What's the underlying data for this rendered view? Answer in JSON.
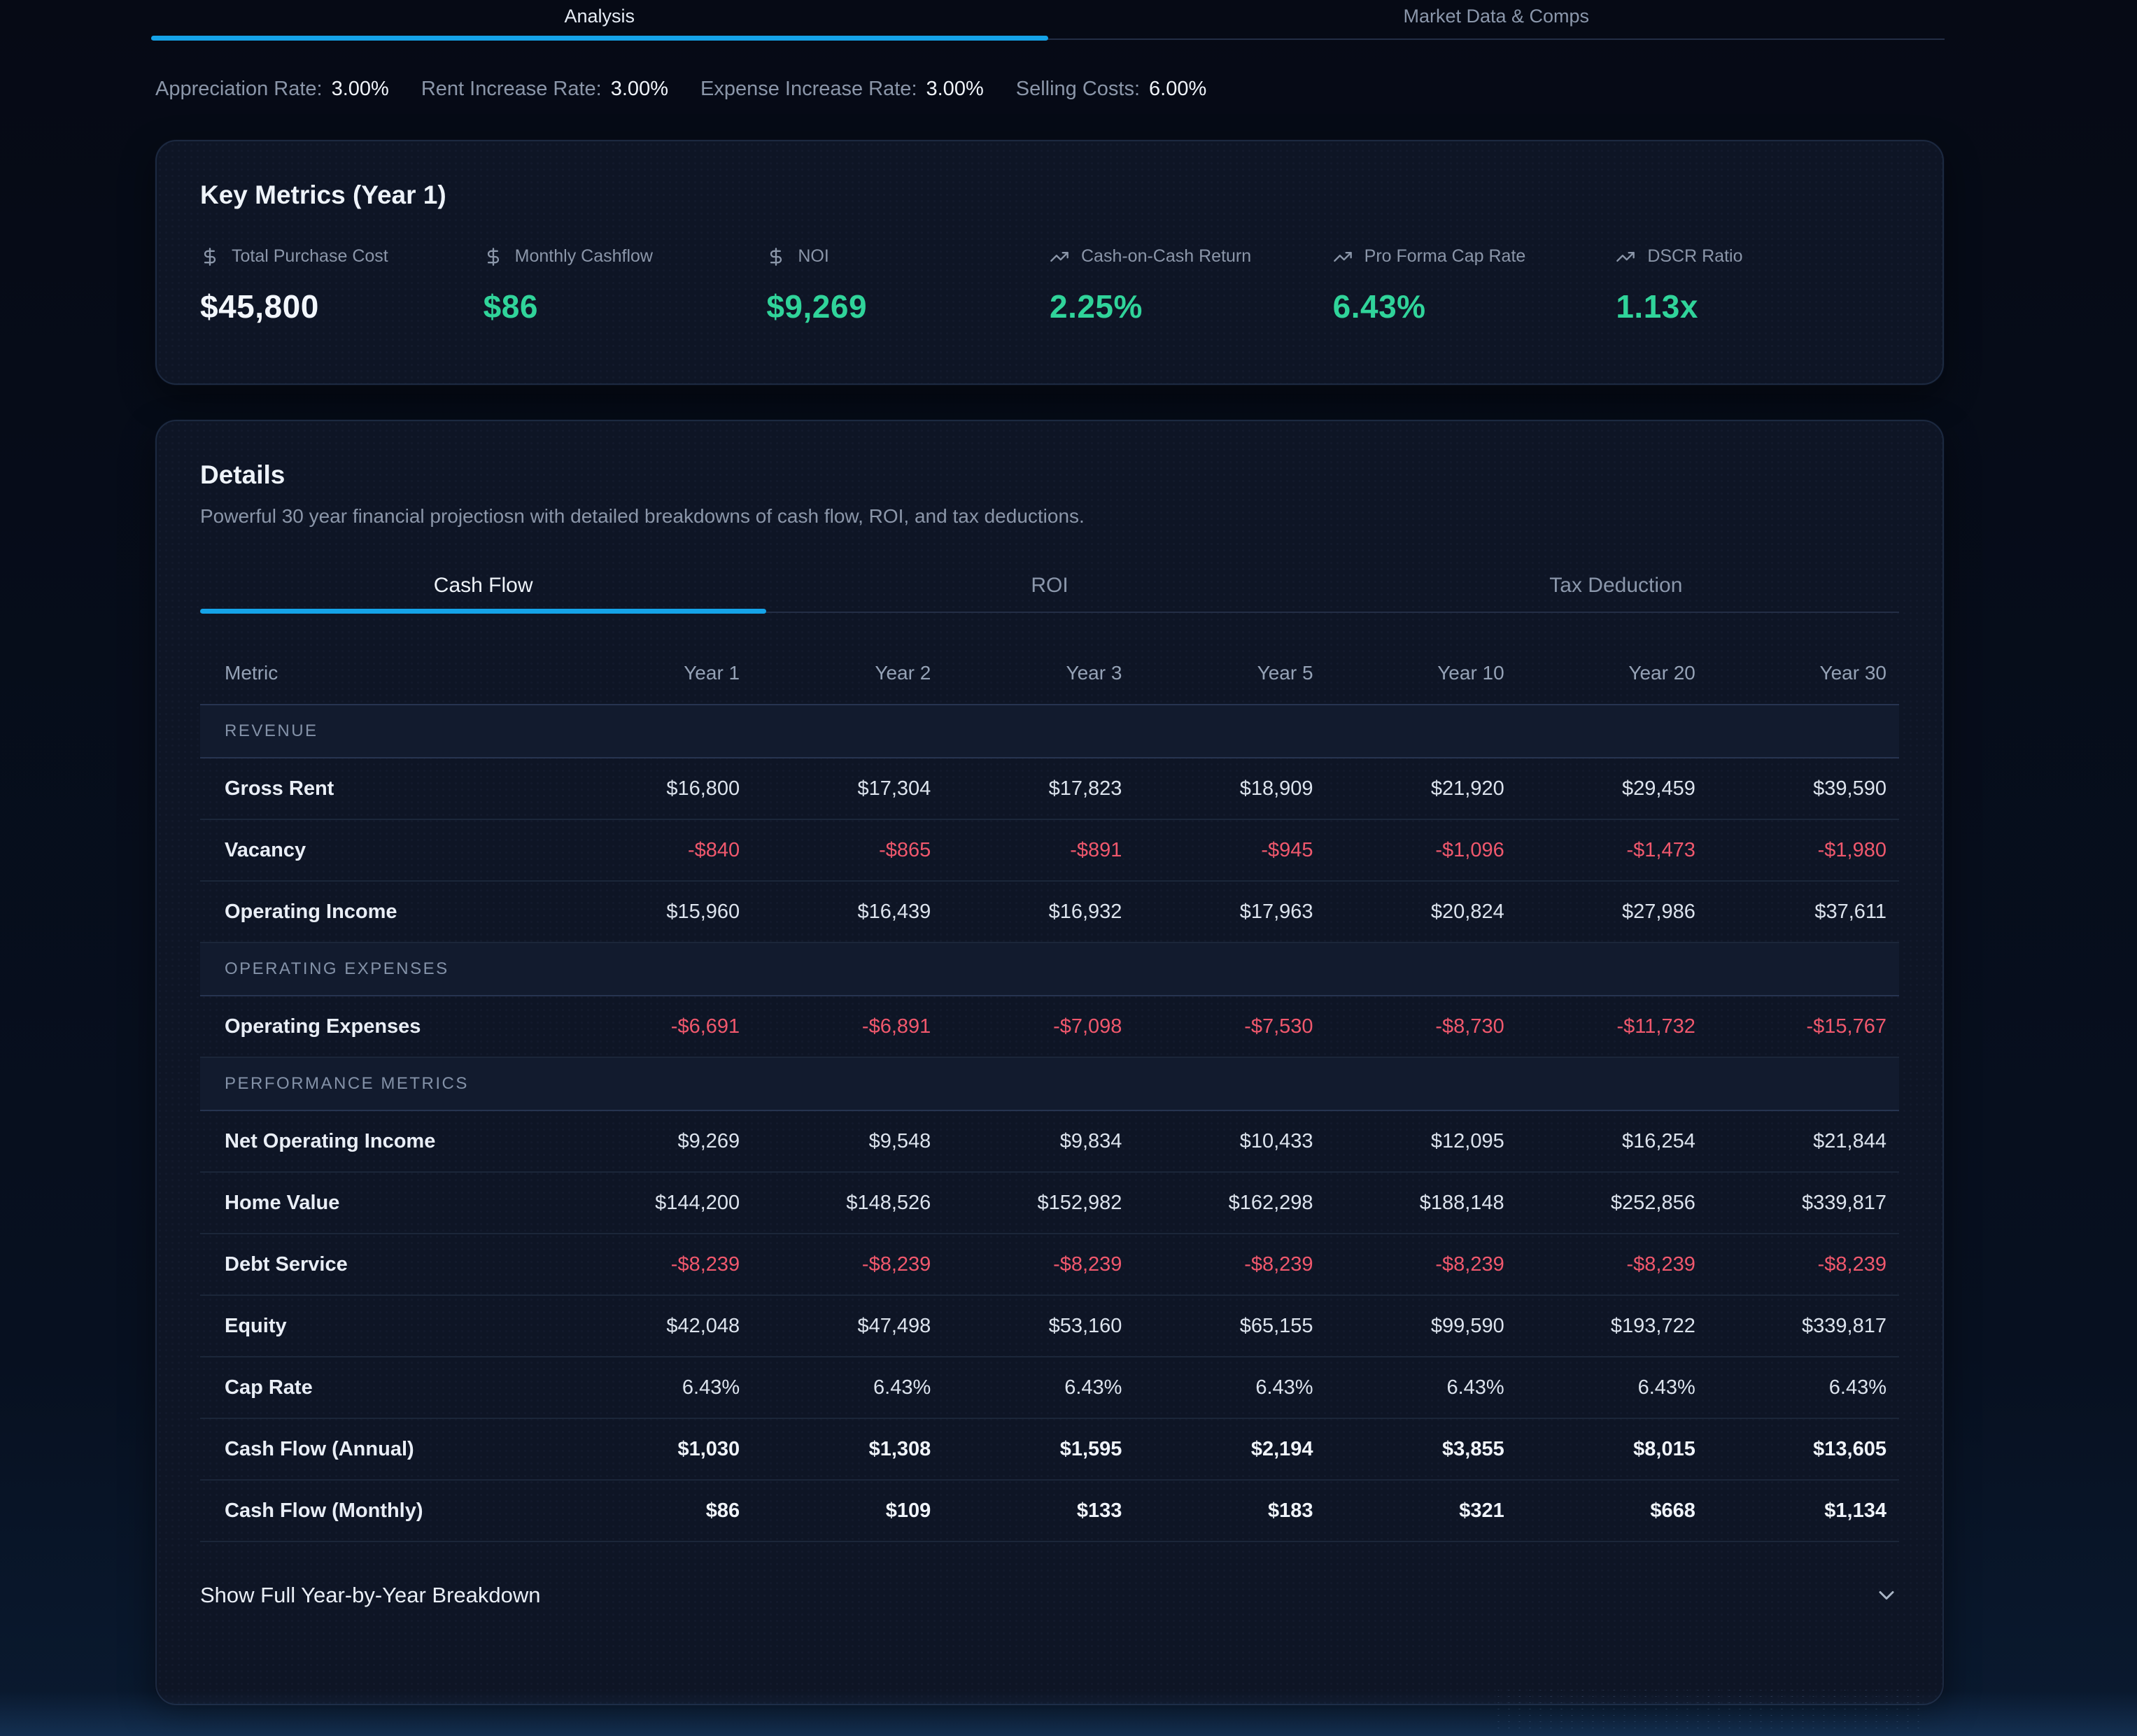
{
  "colors": {
    "accent_blue": "#15a3e8",
    "positive_green": "#30d49a",
    "negative_red": "#f0586d"
  },
  "top_tabs": {
    "items": [
      {
        "label": "Analysis",
        "active": true
      },
      {
        "label": "Market Data & Comps",
        "active": false
      }
    ]
  },
  "assumptions": {
    "items": [
      {
        "label": "Appreciation Rate:",
        "value": "3.00%"
      },
      {
        "label": "Rent Increase Rate:",
        "value": "3.00%"
      },
      {
        "label": "Expense Increase Rate:",
        "value": "3.00%"
      },
      {
        "label": "Selling Costs:",
        "value": "6.00%"
      }
    ]
  },
  "key_metrics": {
    "title": "Key Metrics (Year 1)",
    "items": [
      {
        "icon": "dollar-sign-icon",
        "label": "Total Purchase Cost",
        "value": "$45,800",
        "tone": "white"
      },
      {
        "icon": "dollar-sign-icon",
        "label": "Monthly Cashflow",
        "value": "$86",
        "tone": "green"
      },
      {
        "icon": "dollar-sign-icon",
        "label": "NOI",
        "value": "$9,269",
        "tone": "green"
      },
      {
        "icon": "trending-up-icon",
        "label": "Cash-on-Cash Return",
        "value": "2.25%",
        "tone": "green"
      },
      {
        "icon": "trending-up-icon",
        "label": "Pro Forma Cap Rate",
        "value": "6.43%",
        "tone": "green"
      },
      {
        "icon": "trending-up-icon",
        "label": "DSCR Ratio",
        "value": "1.13x",
        "tone": "green"
      }
    ]
  },
  "details": {
    "title": "Details",
    "subtitle": "Powerful 30 year financial projectiosn with detailed breakdowns of cash flow, ROI, and tax deductions.",
    "tabs": [
      {
        "label": "Cash Flow",
        "active": true
      },
      {
        "label": "ROI",
        "active": false
      },
      {
        "label": "Tax Deduction",
        "active": false
      }
    ],
    "table": {
      "columns": [
        "Metric",
        "Year 1",
        "Year 2",
        "Year 3",
        "Year 5",
        "Year 10",
        "Year 20",
        "Year 30"
      ],
      "rows": [
        {
          "type": "section",
          "label": "REVENUE"
        },
        {
          "type": "data",
          "label": "Gross Rent",
          "tone": "default",
          "values": [
            "$16,800",
            "$17,304",
            "$17,823",
            "$18,909",
            "$21,920",
            "$29,459",
            "$39,590"
          ]
        },
        {
          "type": "data",
          "label": "Vacancy",
          "tone": "negative",
          "values": [
            "-$840",
            "-$865",
            "-$891",
            "-$945",
            "-$1,096",
            "-$1,473",
            "-$1,980"
          ]
        },
        {
          "type": "data",
          "label": "Operating Income",
          "tone": "default",
          "values": [
            "$15,960",
            "$16,439",
            "$16,932",
            "$17,963",
            "$20,824",
            "$27,986",
            "$37,611"
          ]
        },
        {
          "type": "section",
          "label": "OPERATING EXPENSES"
        },
        {
          "type": "data",
          "label": "Operating Expenses",
          "tone": "negative",
          "values": [
            "-$6,691",
            "-$6,891",
            "-$7,098",
            "-$7,530",
            "-$8,730",
            "-$11,732",
            "-$15,767"
          ]
        },
        {
          "type": "section",
          "label": "PERFORMANCE METRICS"
        },
        {
          "type": "data",
          "label": "Net Operating Income",
          "tone": "default",
          "values": [
            "$9,269",
            "$9,548",
            "$9,834",
            "$10,433",
            "$12,095",
            "$16,254",
            "$21,844"
          ]
        },
        {
          "type": "data",
          "label": "Home Value",
          "tone": "default",
          "values": [
            "$144,200",
            "$148,526",
            "$152,982",
            "$162,298",
            "$188,148",
            "$252,856",
            "$339,817"
          ]
        },
        {
          "type": "data",
          "label": "Debt Service",
          "tone": "negative",
          "values": [
            "-$8,239",
            "-$8,239",
            "-$8,239",
            "-$8,239",
            "-$8,239",
            "-$8,239",
            "-$8,239"
          ]
        },
        {
          "type": "data",
          "label": "Equity",
          "tone": "default",
          "values": [
            "$42,048",
            "$47,498",
            "$53,160",
            "$65,155",
            "$99,590",
            "$193,722",
            "$339,817"
          ]
        },
        {
          "type": "data",
          "label": "Cap Rate",
          "tone": "default",
          "values": [
            "6.43%",
            "6.43%",
            "6.43%",
            "6.43%",
            "6.43%",
            "6.43%",
            "6.43%"
          ]
        },
        {
          "type": "data",
          "label": "Cash Flow (Annual)",
          "tone": "bold",
          "values": [
            "$1,030",
            "$1,308",
            "$1,595",
            "$2,194",
            "$3,855",
            "$8,015",
            "$13,605"
          ]
        },
        {
          "type": "data",
          "label": "Cash Flow (Monthly)",
          "tone": "bold",
          "values": [
            "$86",
            "$109",
            "$133",
            "$183",
            "$321",
            "$668",
            "$1,134"
          ]
        }
      ]
    },
    "footer": {
      "label": "Show Full Year-by-Year Breakdown",
      "icon": "chevron-down-icon"
    }
  }
}
